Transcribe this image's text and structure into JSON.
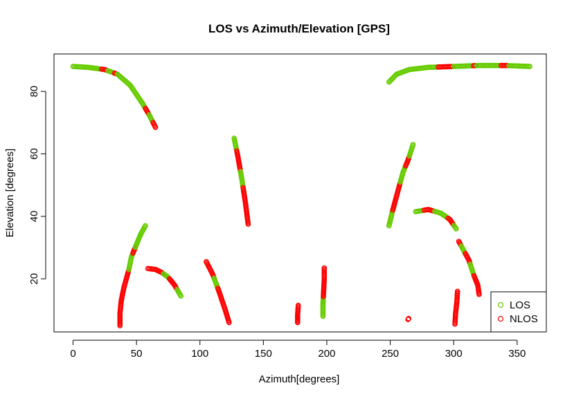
{
  "chart_data": {
    "type": "scatter",
    "title": "LOS vs Azimuth/Elevation [GPS]",
    "xlabel": "Azimuth[degrees]",
    "ylabel": "Elevation [degrees]",
    "xlim": [
      -15,
      373
    ],
    "ylim": [
      3,
      92
    ],
    "xticks": [
      0,
      50,
      100,
      150,
      200,
      250,
      300,
      350
    ],
    "yticks": [
      20,
      40,
      60,
      80
    ],
    "grid": false,
    "legend_position": "bottom-right",
    "colors": {
      "LOS": "#66cc00",
      "NLOS": "#ff0000"
    },
    "marker": "open-circle",
    "legend": [
      {
        "name": "LOS",
        "color": "#66cc00"
      },
      {
        "name": "NLOS",
        "color": "#ff0000"
      }
    ],
    "curves": [
      {
        "points": [
          [
            0,
            88
          ],
          [
            12,
            87.7
          ],
          [
            25,
            87
          ],
          [
            35,
            85.5
          ],
          [
            45,
            82
          ],
          [
            55,
            76
          ],
          [
            60,
            72.5
          ],
          [
            65,
            68.5
          ]
        ],
        "segments": [
          [
            0,
            22,
            "LOS"
          ],
          [
            22,
            27,
            "NLOS"
          ],
          [
            27,
            32,
            "LOS"
          ],
          [
            32,
            35,
            "NLOS"
          ],
          [
            35,
            57,
            "LOS"
          ],
          [
            57,
            60,
            "NLOS"
          ],
          [
            60,
            63,
            "LOS"
          ],
          [
            63,
            65,
            "NLOS"
          ]
        ]
      },
      {
        "points": [
          [
            37,
            5
          ],
          [
            37,
            9
          ],
          [
            38,
            13
          ],
          [
            40,
            17
          ],
          [
            42,
            20
          ],
          [
            44,
            23
          ],
          [
            46,
            27
          ],
          [
            50,
            31
          ],
          [
            53,
            34
          ],
          [
            57,
            37
          ]
        ],
        "segments": [
          [
            37,
            44,
            "NLOS"
          ],
          [
            44,
            47,
            "LOS"
          ],
          [
            47,
            49,
            "NLOS"
          ],
          [
            49,
            57,
            "LOS"
          ]
        ]
      },
      {
        "points": [
          [
            59,
            23.3
          ],
          [
            65,
            23
          ],
          [
            70,
            22
          ],
          [
            75,
            20.5
          ],
          [
            80,
            18
          ],
          [
            85,
            14.5
          ]
        ],
        "segments": [
          [
            59,
            71,
            "NLOS"
          ],
          [
            71,
            76,
            "LOS"
          ],
          [
            76,
            82,
            "NLOS"
          ],
          [
            82,
            85,
            "LOS"
          ]
        ]
      },
      {
        "points": [
          [
            105,
            25.5
          ],
          [
            110,
            21.5
          ],
          [
            115,
            16
          ],
          [
            120,
            10
          ],
          [
            123,
            6
          ]
        ],
        "segments": [
          [
            105,
            111,
            "NLOS"
          ],
          [
            111,
            114,
            "LOS"
          ],
          [
            114,
            123,
            "NLOS"
          ]
        ]
      },
      {
        "points": [
          [
            127,
            65
          ],
          [
            130,
            59
          ],
          [
            133,
            52
          ],
          [
            136,
            44
          ],
          [
            138,
            37.5
          ]
        ],
        "segments": [
          [
            127,
            129,
            "LOS"
          ],
          [
            129,
            132,
            "NLOS"
          ],
          [
            132,
            134,
            "LOS"
          ],
          [
            134,
            138,
            "NLOS"
          ]
        ]
      },
      {
        "points": [
          [
            177,
            6
          ],
          [
            177,
            8.5
          ],
          [
            177.5,
            11.5
          ]
        ],
        "segments": [
          [
            177,
            177.5,
            "NLOS"
          ]
        ]
      },
      {
        "points": [
          [
            197,
            8
          ],
          [
            197,
            12
          ],
          [
            197.5,
            16
          ],
          [
            198,
            20
          ],
          [
            198,
            23.5
          ]
        ],
        "segments": [
          [
            197,
            197.3,
            "LOS"
          ],
          [
            197.3,
            198,
            "NLOS"
          ]
        ]
      },
      {
        "points": [
          [
            249,
            37
          ],
          [
            252,
            42
          ],
          [
            256,
            48
          ],
          [
            260,
            54
          ],
          [
            264,
            58
          ],
          [
            268,
            63
          ]
        ],
        "segments": [
          [
            249,
            252,
            "LOS"
          ],
          [
            252,
            258,
            "NLOS"
          ],
          [
            258,
            262,
            "LOS"
          ],
          [
            262,
            265,
            "NLOS"
          ],
          [
            265,
            268,
            "LOS"
          ]
        ]
      },
      {
        "points": [
          [
            249,
            83
          ],
          [
            255,
            85.5
          ],
          [
            265,
            87
          ],
          [
            280,
            87.7
          ],
          [
            300,
            88
          ],
          [
            320,
            88.3
          ],
          [
            340,
            88.3
          ],
          [
            360,
            88
          ]
        ],
        "segments": [
          [
            249,
            287,
            "LOS"
          ],
          [
            287,
            300,
            "NLOS"
          ],
          [
            300,
            315,
            "LOS"
          ],
          [
            315,
            318,
            "NLOS"
          ],
          [
            318,
            337,
            "LOS"
          ],
          [
            337,
            343,
            "NLOS"
          ],
          [
            343,
            360,
            "LOS"
          ]
        ]
      },
      {
        "points": [
          [
            270,
            41.5
          ],
          [
            280,
            42.2
          ],
          [
            290,
            41
          ],
          [
            297,
            39
          ],
          [
            302,
            36
          ]
        ],
        "segments": [
          [
            270,
            276,
            "LOS"
          ],
          [
            276,
            285,
            "NLOS"
          ],
          [
            285,
            295,
            "LOS"
          ],
          [
            295,
            300,
            "NLOS"
          ],
          [
            300,
            302,
            "LOS"
          ]
        ]
      },
      {
        "points": [
          [
            264,
            7
          ],
          [
            264.5,
            7.3
          ]
        ],
        "segments": [
          [
            264,
            264.5,
            "NLOS"
          ]
        ]
      },
      {
        "points": [
          [
            301,
            5.5
          ],
          [
            301.5,
            9
          ],
          [
            302.5,
            12.5
          ],
          [
            303,
            16
          ]
        ],
        "segments": [
          [
            301,
            303,
            "NLOS"
          ]
        ]
      },
      {
        "points": [
          [
            304,
            32
          ],
          [
            308,
            29
          ],
          [
            312,
            26
          ],
          [
            316,
            21
          ],
          [
            319,
            18
          ],
          [
            320,
            15
          ]
        ],
        "segments": [
          [
            304,
            306,
            "NLOS"
          ],
          [
            306,
            309,
            "LOS"
          ],
          [
            309,
            313,
            "NLOS"
          ],
          [
            313,
            316,
            "LOS"
          ],
          [
            316,
            320,
            "NLOS"
          ]
        ]
      }
    ]
  }
}
